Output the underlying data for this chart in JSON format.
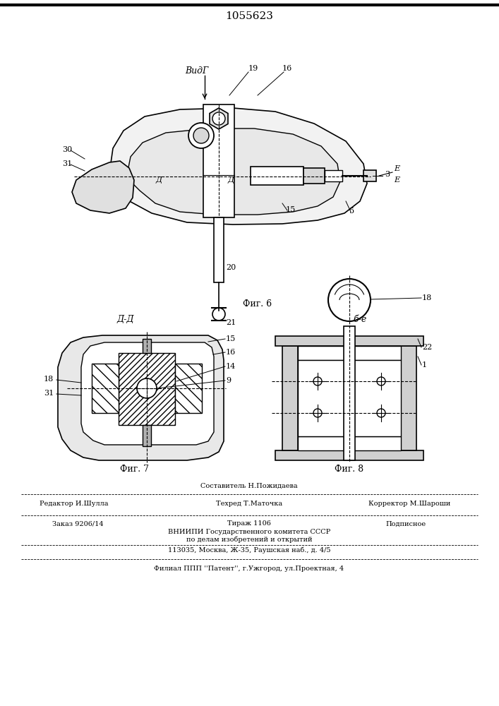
{
  "patent_number": "1055623",
  "bg_color": "#ffffff",
  "line_color": "#000000",
  "fig6_label": "Фиг. 6",
  "fig7_label": "Фиг. 7",
  "fig8_label": "Фиг. 8",
  "view_label_B": "ВидГ",
  "view_label_DD": "Д-Д",
  "view_label_EE": "б-е",
  "footer_line1_center": "Составитель Н.Пожидаева",
  "footer_line2_left": "Редактор И.Шулла",
  "footer_line2_center": "Техред Т.Маточка",
  "footer_line2_right": "Корректор М.Шароши",
  "footer_line3_left": "Заказ 9206/14",
  "footer_line3_center": "Тираж 1106",
  "footer_line3_right": "Подписное",
  "footer_line4": "ВНИИПИ Государственного комитета СССР",
  "footer_line5": "по делам изобретений и открытий",
  "footer_line6": "113035, Москва, Ж-35, Раушская наб., д. 4/5",
  "footer_line7": "Филиал ППП ''Патент'', г.Ужгород, ул.Проектная, 4"
}
